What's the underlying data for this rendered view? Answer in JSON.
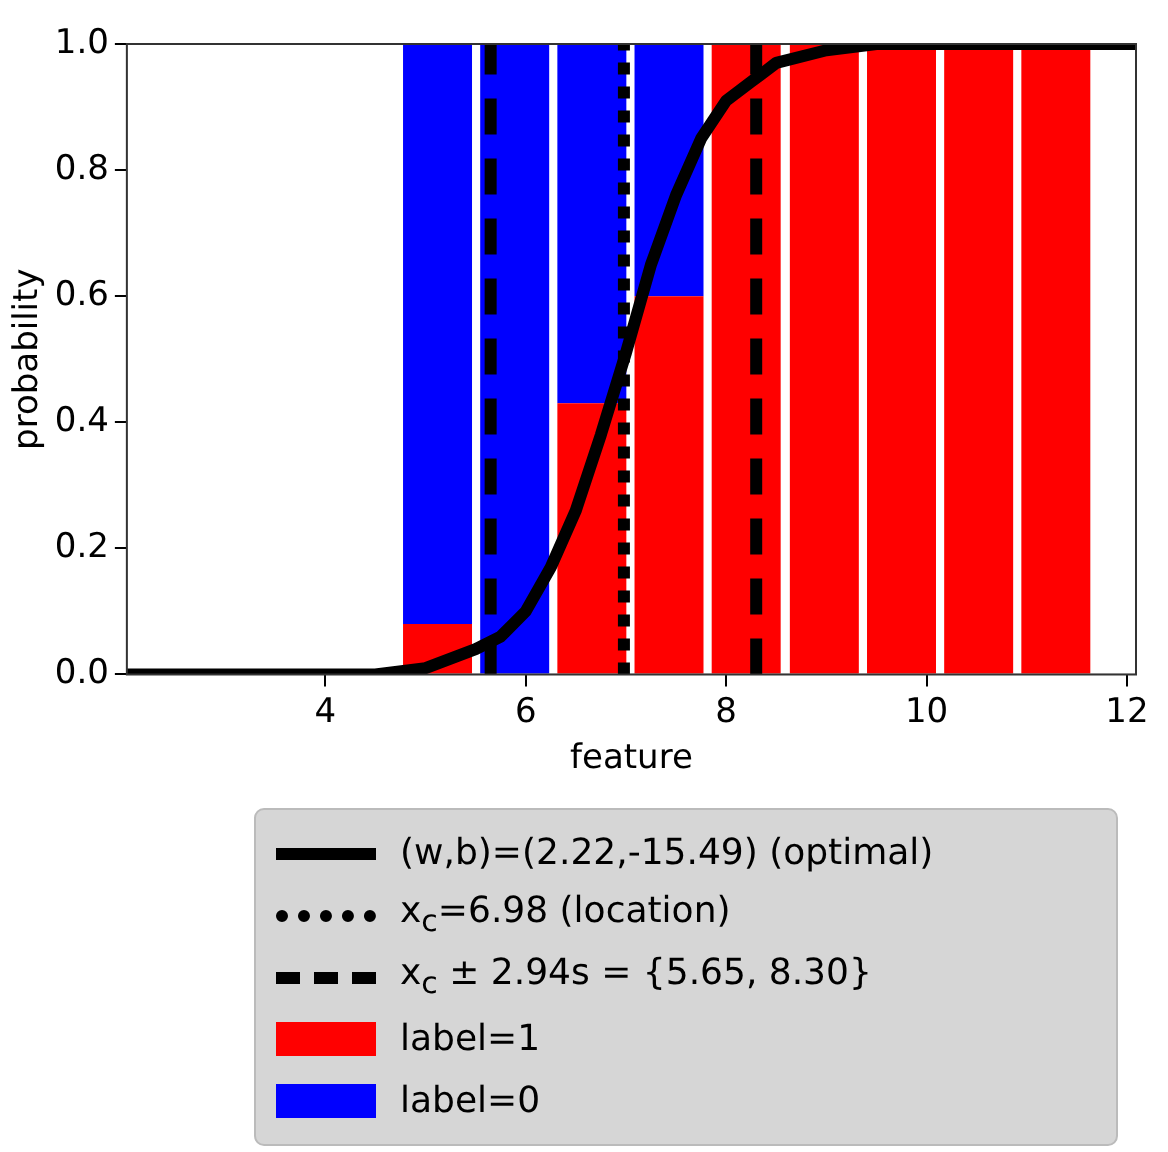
{
  "chart_data": {
    "type": "bar",
    "xlabel": "feature",
    "ylabel": "probability",
    "stacked": true,
    "x": [
      5.12,
      5.89,
      6.66,
      7.43,
      8.2,
      8.98,
      9.75,
      10.52,
      11.29
    ],
    "series": [
      {
        "name": "label=1",
        "color": "#ff0000",
        "values": [
          0.08,
          0,
          0.43,
          0.6,
          1,
          1,
          1,
          1,
          1
        ]
      },
      {
        "name": "label=0",
        "color": "#0000ff",
        "values": [
          0.92,
          1,
          0.57,
          0.4,
          0,
          0,
          0,
          0,
          0
        ]
      },
      {
        "name": "(w,b)=(2.22,-15.49) (optimal)",
        "type": "line",
        "color": "#000000",
        "marker": "none",
        "line_style": "solid",
        "x": [
          2.02,
          3,
          4,
          4.5,
          5,
          5.5,
          5.75,
          6,
          6.25,
          6.5,
          6.75,
          7,
          7.25,
          7.5,
          7.75,
          8,
          8.25,
          8.5,
          9,
          9.5,
          10,
          11,
          12.09
        ],
        "values": [
          0,
          0,
          0,
          0,
          0.01,
          0.04,
          0.06,
          0.1,
          0.17,
          0.26,
          0.38,
          0.51,
          0.65,
          0.76,
          0.85,
          0.91,
          0.94,
          0.97,
          0.99,
          1,
          1,
          1,
          1
        ]
      }
    ],
    "ref_lines": [
      {
        "axis": "x",
        "value": 6.98,
        "label": "x$_{c}$=6.98 (location)",
        "color": "#000000",
        "line_style": "dotted"
      },
      {
        "axis": "x",
        "value": 5.65,
        "label": "x$_{c}$ ± 2.94s = {5.65, 8.30}",
        "color": "#000000",
        "line_style": "dashed"
      },
      {
        "axis": "x",
        "value": 8.3,
        "label": null,
        "color": "#000000",
        "line_style": "dashed"
      }
    ],
    "xlim": [
      2.02,
      12.09
    ],
    "xticks": [
      4,
      6,
      8,
      10,
      12
    ],
    "ylim": [
      0,
      1
    ],
    "yticks": [
      {
        "value": 0,
        "label": "0.0"
      },
      {
        "value": 0.2,
        "label": "0.2"
      },
      {
        "value": 0.4,
        "label": "0.4"
      },
      {
        "value": 0.6,
        "label": "0.6"
      },
      {
        "value": 0.8,
        "label": "0.8"
      },
      {
        "value": 1,
        "label": "1.0"
      }
    ],
    "grid": false,
    "legend": "bottom"
  }
}
